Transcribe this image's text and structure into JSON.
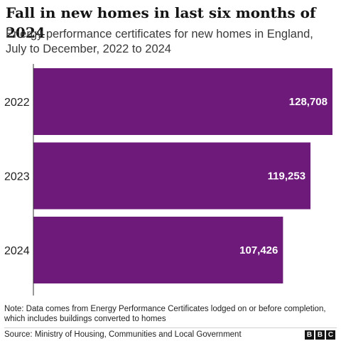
{
  "header": {
    "title": "Fall in new homes in last six months of 2024",
    "subtitle": "Energy performance certificates for new homes in England, July to December, 2022 to 2024"
  },
  "chart_data": {
    "type": "bar",
    "orientation": "horizontal",
    "categories": [
      "2022",
      "2023",
      "2024"
    ],
    "values": [
      128708,
      119253,
      107426
    ],
    "value_labels": [
      "128,708",
      "119,253",
      "107,426"
    ],
    "title": "Fall in new homes in last six months of 2024",
    "subtitle": "Energy performance certificates for new homes in England, July to December, 2022 to 2024",
    "xlim": [
      0,
      128708
    ],
    "grid": false,
    "bar_color": "#6e1a7a",
    "label_color": "#ffffff"
  },
  "footer": {
    "note": "Note: Data comes from Energy Performance Certificates lodged on or before completion, which includes buildings converted to homes",
    "source": "Source: Ministry of Housing, Communities and Local Government",
    "logo_letters": [
      "B",
      "B",
      "C"
    ]
  }
}
